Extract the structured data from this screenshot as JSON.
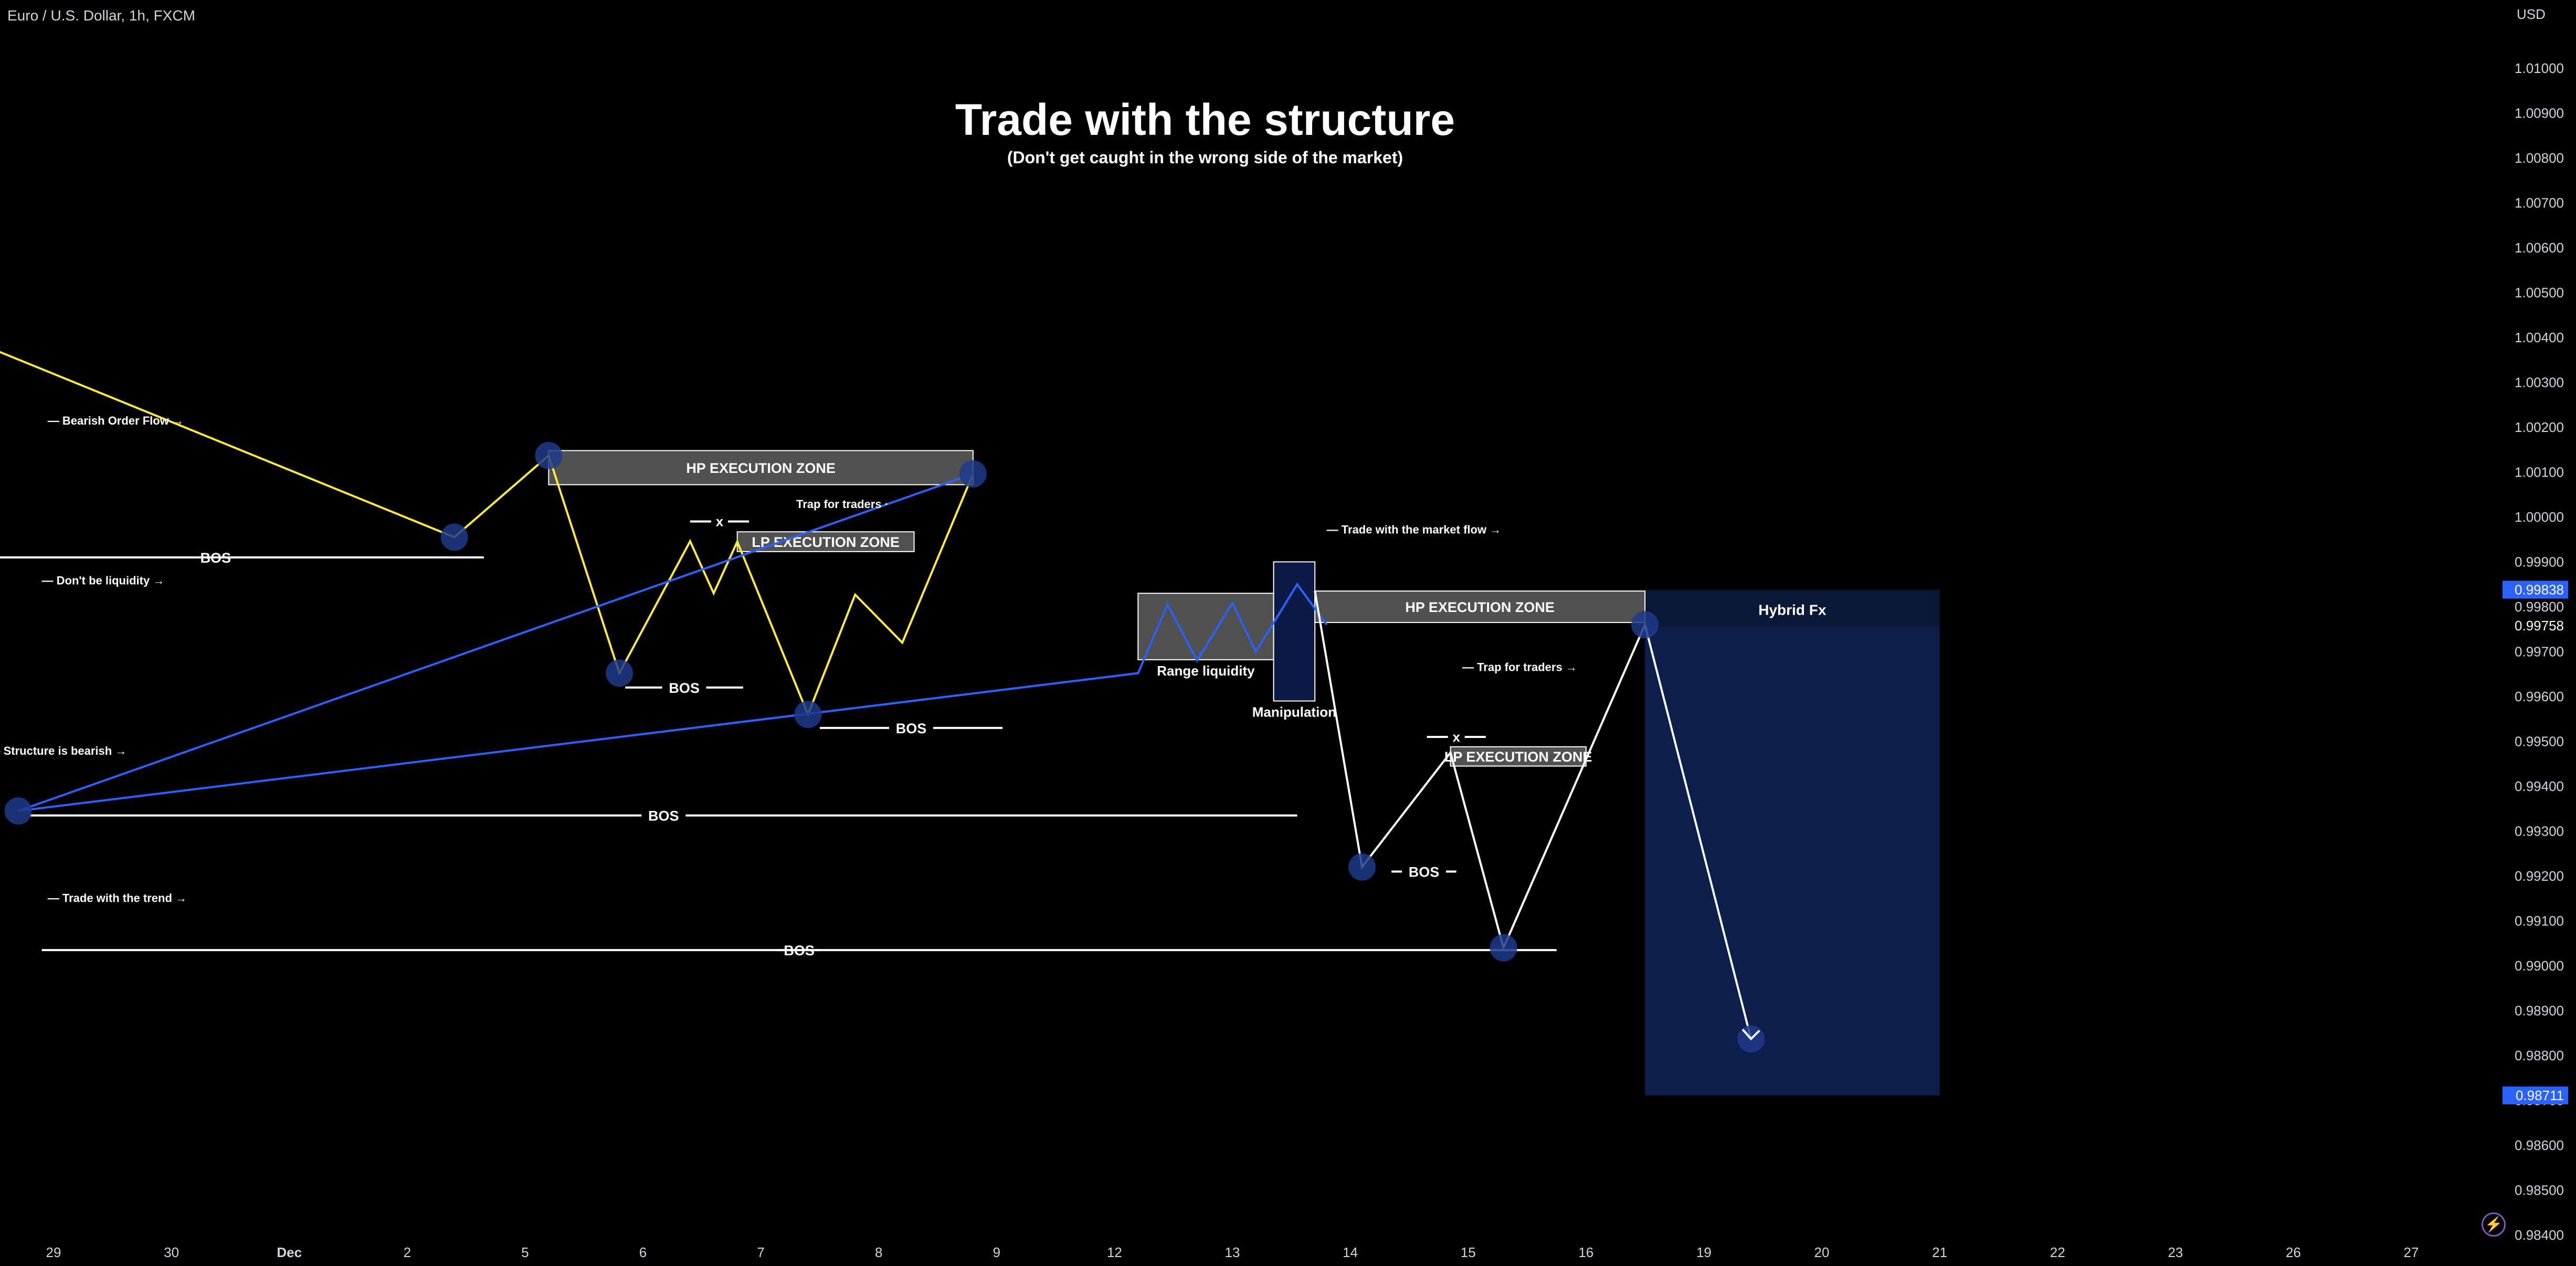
{
  "header": {
    "symbol_title": "Euro / U.S. Dollar, 1h, FXCM",
    "currency": "USD"
  },
  "chart_data": {
    "type": "line",
    "title": "Trade with the structure",
    "subtitle": "(Don't get caught in the wrong side of the market)",
    "xlabel": "",
    "ylabel": "",
    "x_tick_labels": [
      "29",
      "30",
      "Dec",
      "2",
      "5",
      "6",
      "7",
      "8",
      "9",
      "12",
      "13",
      "14",
      "15",
      "16",
      "19",
      "20",
      "21",
      "22",
      "23",
      "26",
      "27"
    ],
    "y_tick_labels": [
      "1.01000",
      "1.00900",
      "1.00800",
      "1.00700",
      "1.00600",
      "1.00500",
      "1.00400",
      "1.00300",
      "1.00200",
      "1.00100",
      "1.00000",
      "0.99900",
      "0.99800",
      "0.99700",
      "0.99600",
      "0.99500",
      "0.99400",
      "0.99300",
      "0.99200",
      "0.99100",
      "0.99000",
      "0.98900",
      "0.98800",
      "0.98700",
      "0.98600",
      "0.98500",
      "0.98400"
    ],
    "ylim": [
      0.9838,
      1.01042
    ],
    "price_labels": [
      {
        "value": "0.99838",
        "color": "#2962ff",
        "highlight": true
      },
      {
        "value": "0.99758",
        "color": "#000000",
        "highlight": false
      },
      {
        "value": "0.98711",
        "color": "#2962ff",
        "highlight": true
      }
    ],
    "colors": {
      "bearish_structure": "#ffeb3b",
      "impulse": "#2962ff",
      "continuation": "#ffffff",
      "swing_marker": "#1e3a8a",
      "projection_box": "#0d1e4c"
    },
    "series": [
      {
        "color": "#ffeb3b",
        "points": [
          [
            "1",
            1.00426
          ],
          [
            "2.4",
            0.99955
          ],
          [
            "5.2",
            1.00137
          ],
          [
            "5.8",
            0.99652
          ],
          [
            "6.4",
            0.99946
          ],
          [
            "6.6",
            0.9983
          ],
          [
            "6.8",
            0.99945
          ],
          [
            "7.4",
            0.9956
          ],
          [
            "7.8",
            0.99827
          ],
          [
            "8.2",
            0.9972
          ],
          [
            "8.8",
            1.00096
          ]
        ]
      },
      {
        "color": "#2962ff",
        "points": [
          [
            "8.8",
            1.00096
          ],
          [
            "11.7",
            0.99345
          ],
          [
            "12.2",
            0.99652
          ],
          [
            "12.45",
            0.99805
          ],
          [
            "12.7",
            0.9968
          ],
          [
            "13.0",
            0.99808
          ],
          [
            "13.2",
            0.997
          ],
          [
            "13.55",
            0.9985
          ],
          [
            "13.8",
            0.9976
          ]
        ]
      },
      {
        "color": "#ffffff",
        "points": [
          [
            "13.7",
            0.99835
          ],
          [
            "14.1",
            0.9922
          ],
          [
            "14.85",
            0.99475
          ],
          [
            "15.3",
            0.9904
          ],
          [
            "16.5",
            0.9976
          ],
          [
            "19.4",
            0.98837
          ]
        ]
      }
    ],
    "swing_points": [
      [
        "1",
        1.00426
      ],
      [
        "2.4",
        0.99955
      ],
      [
        "5.2",
        1.00137
      ],
      [
        "5.8",
        0.99652
      ],
      [
        "7.4",
        0.9956
      ],
      [
        "8.8",
        1.00096
      ],
      [
        "11.7",
        0.99345
      ],
      [
        "14.1",
        0.9922
      ],
      [
        "15.3",
        0.9904
      ],
      [
        "16.5",
        0.9976
      ],
      [
        "19.4",
        0.98837
      ]
    ],
    "zones": [
      {
        "label": "HP EXECUTION ZONE",
        "x0": "5.2",
        "x1": "8.8",
        "y_top": 1.00148,
        "y_bottom": 1.00072,
        "fill": "#5a5a5a"
      },
      {
        "label": "LP EXECUTION ZONE",
        "x0": "6.8",
        "x1": "8.3",
        "y_top": 0.99967,
        "y_bottom": 0.99923,
        "fill": "#5a5a5a"
      },
      {
        "label": "Range liquidity",
        "x0": "12.2",
        "x1": "13.35",
        "y_top": 0.9983,
        "y_bottom": 0.99682,
        "fill": "#5a5a5a"
      },
      {
        "label": "Manipulation",
        "x0": "13.35",
        "x1": "13.7",
        "y_top": 0.999,
        "y_bottom": 0.9959,
        "fill": "#0d1e4c"
      },
      {
        "label": "HP EXECUTION ZONE",
        "x0": "13.7",
        "x1": "16.5",
        "y_top": 0.99835,
        "y_bottom": 0.99765,
        "fill": "#5a5a5a"
      },
      {
        "label": "LP EXECUTION ZONE",
        "x0": "14.85",
        "x1": "16",
        "y_top": 0.99488,
        "y_bottom": 0.99445,
        "fill": "#5a5a5a"
      }
    ],
    "projection": {
      "label": "Hybrid Fx",
      "x0": "16.5",
      "x1": "21",
      "y_top": 0.99838,
      "y_bottom": 0.98711
    },
    "bos_lines": [
      {
        "label": "BOS",
        "x0": "2.65",
        "x1": "3.1",
        "y": 0.9991
      },
      {
        "label": "BOS",
        "x0": "5.85",
        "x1": "6.85",
        "y": 0.9962
      },
      {
        "label": "BOS",
        "x0": "7.5",
        "x1": "9.05",
        "y": 0.9953
      },
      {
        "label": "BOS",
        "x0": "11.8",
        "x1": "13.55",
        "y": 0.99335
      },
      {
        "label": "BOS",
        "x0": "14.35",
        "x1": "14.9",
        "y": 0.9921
      },
      {
        "label": "BOS",
        "x0": "15.75",
        "x1": "17.9",
        "y": 0.99035
      }
    ],
    "x_marks": [
      {
        "label": "x",
        "x0": "6.4",
        "x1": "6.9",
        "y": 0.9999
      },
      {
        "label": "x",
        "x0": "14.65",
        "x1": "15.15",
        "y": 0.9951
      }
    ],
    "annotations": [
      {
        "text": "— Bearish Order Flow →",
        "x": "4.95",
        "y": 1.00206
      },
      {
        "text": "Trap for traders ·",
        "x": "7.3",
        "y": 1.0002
      },
      {
        "text": "— Structure is bearish →",
        "x": "3.45",
        "y": 0.9947
      },
      {
        "text": "— Don't be liquidity →",
        "x": "11.9",
        "y": 0.9985
      },
      {
        "text": "— Trade with the market flow →",
        "x": "13.8",
        "y": 0.99963
      },
      {
        "text": "— Trade with the trend →",
        "x": "11.95",
        "y": 0.99142
      },
      {
        "text": "— Trap for traders →",
        "x": "14.95",
        "y": 0.99657
      }
    ]
  }
}
